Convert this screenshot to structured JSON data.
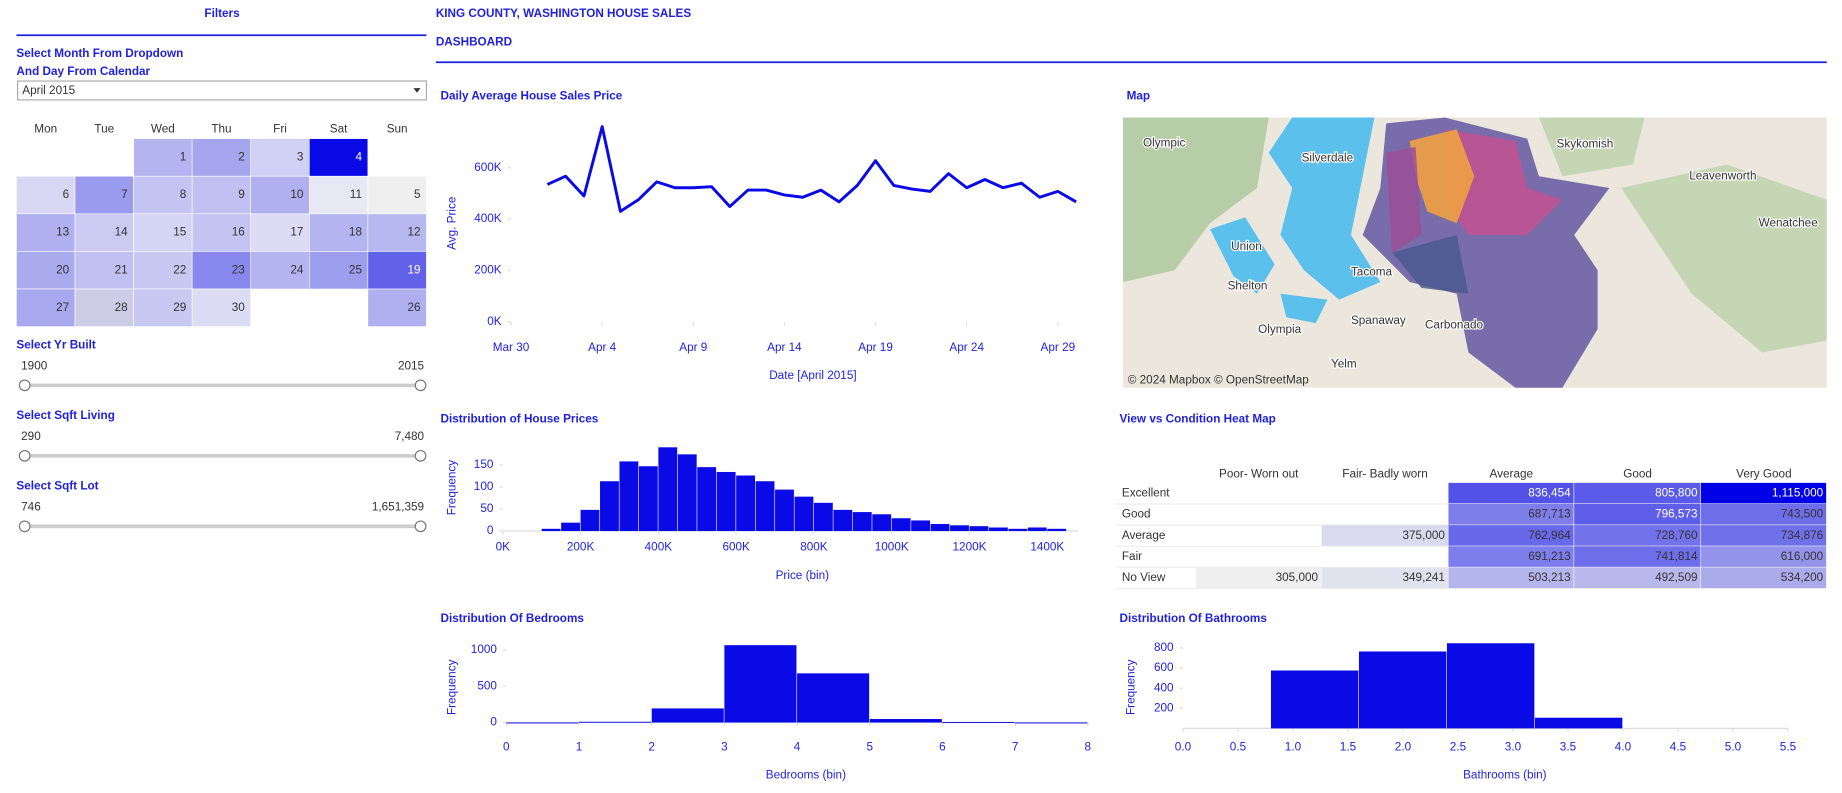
{
  "filters": {
    "title": "Filters",
    "calendar_label_lines": [
      "Select Month From Dropdown",
      "And Day From Calendar"
    ],
    "dropdown": "April 2015",
    "calendar": {
      "weekdays": [
        "Mon",
        "Tue",
        "Wed",
        "Thu",
        "Fri",
        "Sat",
        "Sun"
      ],
      "weeks": [
        [
          null,
          null,
          {
            "day": "1",
            "color": "#b4b4f0"
          },
          {
            "day": "2",
            "color": "#a6a6ee"
          },
          {
            "day": "3",
            "color": "#d0d0f4"
          },
          {
            "day": "4",
            "color": "#0a0ae6"
          },
          null
        ],
        [
          {
            "day": "6",
            "color": "#d8d8f5"
          },
          {
            "day": "7",
            "color": "#9a9aee"
          },
          {
            "day": "8",
            "color": "#c4c4f2"
          },
          {
            "day": "9",
            "color": "#c0c0f2"
          },
          {
            "day": "10",
            "color": "#b0b0f0"
          },
          {
            "day": "11",
            "color": "#e8e8f5"
          },
          {
            "day": "5",
            "color": "#efefef"
          }
        ],
        [
          {
            "day": "13",
            "color": "#b0b0f0"
          },
          {
            "day": "14",
            "color": "#cacaf3"
          },
          {
            "day": "15",
            "color": "#d4d4f4"
          },
          {
            "day": "16",
            "color": "#c4c4f2"
          },
          {
            "day": "17",
            "color": "#dcdcf5"
          },
          {
            "day": "18",
            "color": "#b4b4f0"
          },
          {
            "day": "12",
            "color": "#b8b8f0"
          }
        ],
        [
          {
            "day": "20",
            "color": "#aaaaee"
          },
          {
            "day": "21",
            "color": "#c0c0f2"
          },
          {
            "day": "22",
            "color": "#c8c8f2"
          },
          {
            "day": "23",
            "color": "#8888ec"
          },
          {
            "day": "24",
            "color": "#b4b4f0"
          },
          {
            "day": "25",
            "color": "#9e9eee"
          },
          {
            "day": "19",
            "color": "#6262e8"
          }
        ],
        [
          {
            "day": "27",
            "color": "#a8a8ee"
          },
          {
            "day": "28",
            "color": "#cccce6"
          },
          {
            "day": "29",
            "color": "#c8c8f2"
          },
          {
            "day": "30",
            "color": "#dcdcf5"
          },
          null,
          null,
          {
            "day": "26",
            "color": "#b0b0f0"
          }
        ]
      ]
    },
    "sliders": [
      {
        "label": "Select Yr Built",
        "min": "1900",
        "max": "2015"
      },
      {
        "label": "Select Sqft Living",
        "min": "290",
        "max": "7,480"
      },
      {
        "label": "Select Sqft Lot",
        "min": "746",
        "max": "1,651,359"
      }
    ]
  },
  "header": {
    "title_lines": [
      "KING COUNTY, WASHINGTON HOUSE SALES",
      "DASHBOARD"
    ]
  },
  "map": {
    "title": "Map",
    "places": [
      "Olympic",
      "Silverdale",
      "Skykomish",
      "Leavenworth",
      "Wenatchee",
      "Union",
      "Shelton",
      "Tacoma",
      "Spanaway",
      "Carbonado",
      "Olympia",
      "Yelm"
    ],
    "attribution": "© 2024 Mapbox  © OpenStreetMap"
  },
  "chart_data": [
    {
      "type": "line",
      "title": "Daily Average House Sales Price",
      "x_label": "Date [April 2015]",
      "y_label": "Avg. Price",
      "x": [
        "Apr 1",
        "Apr 2",
        "Apr 3",
        "Apr 4",
        "Apr 5",
        "Apr 6",
        "Apr 7",
        "Apr 8",
        "Apr 9",
        "Apr 10",
        "Apr 11",
        "Apr 12",
        "Apr 13",
        "Apr 14",
        "Apr 15",
        "Apr 16",
        "Apr 17",
        "Apr 18",
        "Apr 19",
        "Apr 20",
        "Apr 21",
        "Apr 22",
        "Apr 23",
        "Apr 24",
        "Apr 25",
        "Apr 26",
        "Apr 27",
        "Apr 28",
        "Apr 29",
        "Apr 30"
      ],
      "values": [
        535000,
        567000,
        490000,
        760000,
        430000,
        476000,
        545000,
        522000,
        522000,
        526000,
        449000,
        513000,
        513000,
        494000,
        485000,
        513000,
        467000,
        531000,
        627000,
        531000,
        517000,
        508000,
        577000,
        522000,
        554000,
        522000,
        540000,
        485000,
        508000,
        467000
      ],
      "color": "#0a0ae6",
      "xlim": [
        "Mar 30",
        "Apr 30"
      ],
      "xticks": [
        "Mar 30",
        "Apr 4",
        "Apr 9",
        "Apr 14",
        "Apr 19",
        "Apr 24",
        "Apr 29"
      ],
      "ylim": [
        0,
        800000
      ],
      "yticks": [
        {
          "value": 0,
          "label": "0K"
        },
        {
          "value": 200000,
          "label": "200K"
        },
        {
          "value": 400000,
          "label": "400K"
        },
        {
          "value": 600000,
          "label": "600K"
        }
      ]
    },
    {
      "type": "histogram",
      "title": "Distribution of House Prices",
      "x_label": "Price (bin)",
      "y_label": "Frequency",
      "bins": [
        100000,
        150000,
        200000,
        250000,
        300000,
        350000,
        400000,
        450000,
        500000,
        550000,
        600000,
        650000,
        700000,
        750000,
        800000,
        850000,
        900000,
        950000,
        1000000,
        1050000,
        1100000,
        1150000,
        1200000,
        1250000,
        1300000,
        1350000,
        1400000,
        1450000
      ],
      "values": [
        5,
        19,
        48,
        113,
        158,
        147,
        190,
        174,
        145,
        134,
        126,
        113,
        94,
        78,
        64,
        48,
        43,
        38,
        29,
        24,
        16,
        13,
        11,
        8,
        5,
        8,
        5
      ],
      "color": "#0a0ae6",
      "xlim": [
        0,
        1480000
      ],
      "xticks": [
        {
          "value": 0,
          "label": "0K"
        },
        {
          "value": 200000,
          "label": "200K"
        },
        {
          "value": 400000,
          "label": "400K"
        },
        {
          "value": 600000,
          "label": "600K"
        },
        {
          "value": 800000,
          "label": "800K"
        },
        {
          "value": 1000000,
          "label": "1000K"
        },
        {
          "value": 1200000,
          "label": "1200K"
        },
        {
          "value": 1400000,
          "label": "1400K"
        }
      ],
      "ylim": [
        0,
        200
      ],
      "yticks": [
        0,
        50,
        100,
        150
      ]
    },
    {
      "type": "heatmap",
      "title": "View vs Condition Heat Map",
      "columns": [
        "Poor- Worn out",
        "Fair- Badly worn",
        "Average",
        "Good",
        "Very Good"
      ],
      "rows": [
        "Excellent",
        "Good",
        "Average",
        "Fair",
        "No View"
      ],
      "values": [
        [
          null,
          null,
          836454,
          805800,
          1115000
        ],
        [
          null,
          null,
          687713,
          796573,
          743500
        ],
        [
          null,
          375000,
          762964,
          728760,
          734876
        ],
        [
          null,
          null,
          691213,
          741814,
          616000
        ],
        [
          305000,
          349241,
          503213,
          492509,
          534200
        ]
      ],
      "value_labels": [
        [
          null,
          null,
          "836,454",
          "805,800",
          "1,115,000"
        ],
        [
          null,
          null,
          "687,713",
          "796,573",
          "743,500"
        ],
        [
          null,
          "375,000",
          "762,964",
          "728,760",
          "734,876"
        ],
        [
          null,
          null,
          "691,213",
          "741,814",
          "616,000"
        ],
        [
          "305,000",
          "349,241",
          "503,213",
          "492,509",
          "534,200"
        ]
      ],
      "color_low": "#efefef",
      "color_high": "#0000e6"
    },
    {
      "type": "histogram",
      "title": "Distribution Of Bedrooms",
      "x_label": "Bedrooms (bin)",
      "y_label": "Frequency",
      "bins": [
        0,
        1,
        2,
        3,
        4,
        5,
        6,
        7,
        8
      ],
      "values": [
        0,
        10,
        194,
        1065,
        677,
        48,
        6,
        0
      ],
      "color": "#0a0ae6",
      "xlim": [
        0,
        8
      ],
      "xticks": [
        0,
        1,
        2,
        3,
        4,
        5,
        6,
        7,
        8
      ],
      "ylim": [
        0,
        1100
      ],
      "yticks": [
        0,
        500,
        1000
      ]
    },
    {
      "type": "histogram",
      "title": "Distribution Of Bathrooms",
      "x_label": "Bathrooms (bin)",
      "y_label": "Frequency",
      "bins": [
        0.8,
        1.6,
        2.4,
        3.2,
        4.0
      ],
      "values": [
        576,
        765,
        847,
        106
      ],
      "color": "#0a0ae6",
      "xlim": [
        0,
        5.5
      ],
      "xticks": [
        {
          "value": 0,
          "label": "0.0"
        },
        0.5,
        {
          "value": 1,
          "label": "1.0"
        },
        1.5,
        {
          "value": 2,
          "label": "2.0"
        },
        2.5,
        {
          "value": 3,
          "label": "3.0"
        },
        3.5,
        {
          "value": 4,
          "label": "4.0"
        },
        4.5,
        {
          "value": 5,
          "label": "5.0"
        },
        5.5
      ],
      "ylim": [
        0,
        900
      ],
      "yticks": [
        200,
        400,
        600,
        800
      ]
    }
  ]
}
